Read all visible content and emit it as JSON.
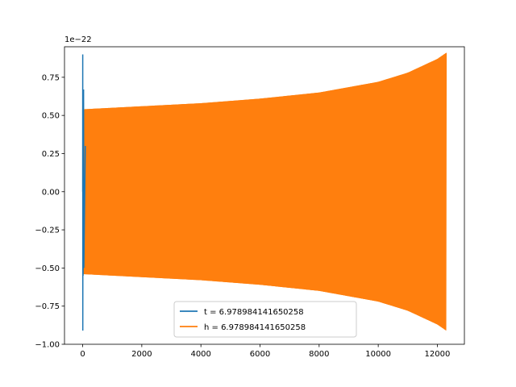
{
  "chart_data": {
    "type": "line",
    "y_offset_text": "1e−22",
    "xlim": [
      -615,
      12915
    ],
    "ylim": [
      -1.0,
      0.95
    ],
    "x_ticks": [
      0,
      2000,
      4000,
      6000,
      8000,
      10000,
      12000
    ],
    "x_tick_labels": [
      "0",
      "2000",
      "4000",
      "6000",
      "8000",
      "10000",
      "12000"
    ],
    "y_ticks": [
      -1.0,
      -0.75,
      -0.5,
      -0.25,
      0.0,
      0.25,
      0.5,
      0.75
    ],
    "y_tick_labels": [
      "−1.00",
      "−0.75",
      "−0.50",
      "−0.25",
      "0.00",
      "0.25",
      "0.50",
      "0.75"
    ],
    "grid": false,
    "legend_position": "lower center",
    "series": [
      {
        "name": "t = 6.978984141650258",
        "color": "#1f77b4",
        "x_range": [
          0,
          90
        ],
        "amplitude_start": 0.9,
        "amplitude_end": -0.91,
        "description_kind": "transient spike"
      },
      {
        "name": "h = 6.978984141650258",
        "color": "#ff7f0e",
        "x_range": [
          0,
          12300
        ],
        "envelope": [
          {
            "x": 0,
            "amp": 0.54
          },
          {
            "x": 2000,
            "amp": 0.56
          },
          {
            "x": 4000,
            "amp": 0.58
          },
          {
            "x": 6000,
            "amp": 0.61
          },
          {
            "x": 8000,
            "amp": 0.65
          },
          {
            "x": 10000,
            "amp": 0.72
          },
          {
            "x": 11000,
            "amp": 0.78
          },
          {
            "x": 12000,
            "amp": 0.87
          },
          {
            "x": 12300,
            "amp": 0.91
          }
        ]
      }
    ]
  }
}
